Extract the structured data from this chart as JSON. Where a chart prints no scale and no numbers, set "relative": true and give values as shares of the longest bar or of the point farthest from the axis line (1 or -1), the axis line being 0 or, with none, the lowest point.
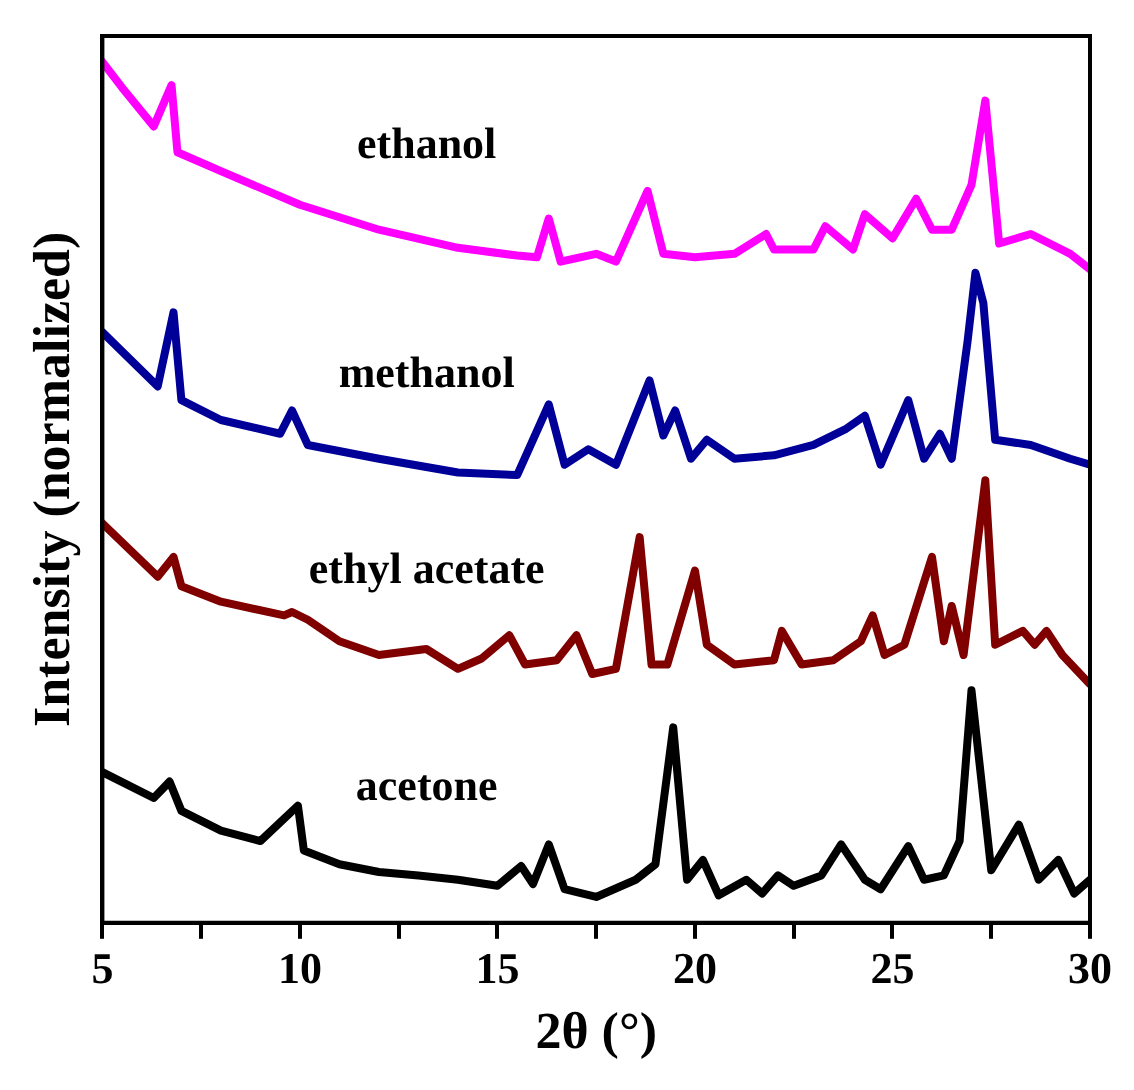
{
  "chart_data": {
    "type": "line",
    "relative": true,
    "xlabel": "2θ (°)",
    "ylabel": "Intensity (normalized)",
    "xlim": [
      5,
      30
    ],
    "xticks": [
      5,
      {
        "value": 7.5,
        "label": null
      },
      10,
      {
        "value": 12.5,
        "label": null
      },
      15,
      {
        "value": 17.5,
        "label": null
      },
      20,
      {
        "value": 22.5,
        "label": null
      },
      25,
      {
        "value": 27.5,
        "label": null
      },
      30
    ],
    "grid": false,
    "legend": false,
    "marker": "none",
    "line_style": "solid",
    "series": [
      {
        "name": "ethanol",
        "color": "#ff00ff",
        "x": [
          5,
          5.5,
          6.3,
          6.75,
          6.9,
          8,
          10,
          12,
          14,
          15.5,
          16,
          16.3,
          16.6,
          17.5,
          18,
          18.8,
          19.2,
          20,
          21,
          21.8,
          22,
          23,
          23.3,
          24,
          24.3,
          25,
          25.6,
          26,
          26.5,
          27,
          27.35,
          27.7,
          28.5,
          29.5,
          30
        ],
        "values": [
          1.0,
          0.97,
          0.925,
          0.973,
          0.895,
          0.873,
          0.834,
          0.805,
          0.784,
          0.775,
          0.773,
          0.818,
          0.768,
          0.777,
          0.768,
          0.85,
          0.777,
          0.773,
          0.777,
          0.8,
          0.782,
          0.782,
          0.809,
          0.782,
          0.823,
          0.795,
          0.841,
          0.805,
          0.805,
          0.857,
          0.955,
          0.789,
          0.8,
          0.777,
          0.759
        ]
      },
      {
        "name": "methanol",
        "color": "#000099",
        "x": [
          5,
          6.4,
          6.8,
          7,
          8,
          9.5,
          9.8,
          10.2,
          12,
          14,
          15.5,
          16.3,
          16.7,
          17.3,
          18,
          18.85,
          19.2,
          19.5,
          19.9,
          20.3,
          21,
          22,
          23,
          23.8,
          24.3,
          24.7,
          25.4,
          25.8,
          26.2,
          26.5,
          26.9,
          27.1,
          27.3,
          27.6,
          28.5,
          29.5,
          30
        ],
        "values": [
          0.686,
          0.623,
          0.709,
          0.607,
          0.584,
          0.568,
          0.595,
          0.555,
          0.539,
          0.523,
          0.52,
          0.602,
          0.532,
          0.55,
          0.532,
          0.63,
          0.566,
          0.595,
          0.539,
          0.561,
          0.539,
          0.543,
          0.555,
          0.573,
          0.589,
          0.532,
          0.607,
          0.539,
          0.568,
          0.539,
          0.675,
          0.755,
          0.72,
          0.561,
          0.555,
          0.539,
          0.532
        ]
      },
      {
        "name": "ethyl acetate",
        "color": "#800000",
        "x": [
          5,
          6.4,
          6.8,
          7,
          8,
          9.6,
          9.8,
          10.2,
          11,
          12,
          13.2,
          14,
          14.6,
          15.3,
          15.7,
          16.5,
          17,
          17.4,
          18,
          18.6,
          18.9,
          19.3,
          20,
          20.3,
          21,
          22,
          22.2,
          22.7,
          23.5,
          24.2,
          24.5,
          24.8,
          25.3,
          26,
          26.3,
          26.5,
          26.8,
          27.35,
          27.6,
          28.3,
          28.6,
          28.9,
          29.3,
          30
        ],
        "values": [
          0.464,
          0.402,
          0.425,
          0.391,
          0.373,
          0.357,
          0.361,
          0.352,
          0.327,
          0.311,
          0.318,
          0.295,
          0.307,
          0.334,
          0.3,
          0.305,
          0.334,
          0.289,
          0.295,
          0.448,
          0.3,
          0.3,
          0.409,
          0.323,
          0.3,
          0.305,
          0.339,
          0.3,
          0.305,
          0.327,
          0.357,
          0.311,
          0.323,
          0.425,
          0.327,
          0.368,
          0.311,
          0.514,
          0.323,
          0.339,
          0.323,
          0.339,
          0.311,
          0.277
        ]
      },
      {
        "name": "acetone",
        "color": "#000000",
        "x": [
          5,
          6.3,
          6.7,
          7,
          8,
          9,
          9.95,
          10.1,
          11,
          12,
          13,
          14,
          15,
          15.6,
          15.9,
          16.3,
          16.7,
          17.5,
          18.5,
          19,
          19.45,
          19.8,
          20.2,
          20.6,
          21.3,
          21.7,
          22.1,
          22.5,
          23.2,
          23.7,
          24.3,
          24.7,
          25.4,
          25.8,
          26.3,
          26.7,
          27,
          27.5,
          28.2,
          28.7,
          29.2,
          29.6,
          30
        ],
        "values": [
          0.175,
          0.145,
          0.164,
          0.13,
          0.107,
          0.095,
          0.136,
          0.084,
          0.068,
          0.059,
          0.055,
          0.05,
          0.043,
          0.066,
          0.045,
          0.091,
          0.039,
          0.03,
          0.05,
          0.068,
          0.227,
          0.05,
          0.073,
          0.032,
          0.05,
          0.034,
          0.055,
          0.043,
          0.055,
          0.091,
          0.05,
          0.039,
          0.089,
          0.05,
          0.055,
          0.095,
          0.27,
          0.061,
          0.114,
          0.05,
          0.073,
          0.034,
          0.05
        ]
      }
    ]
  }
}
